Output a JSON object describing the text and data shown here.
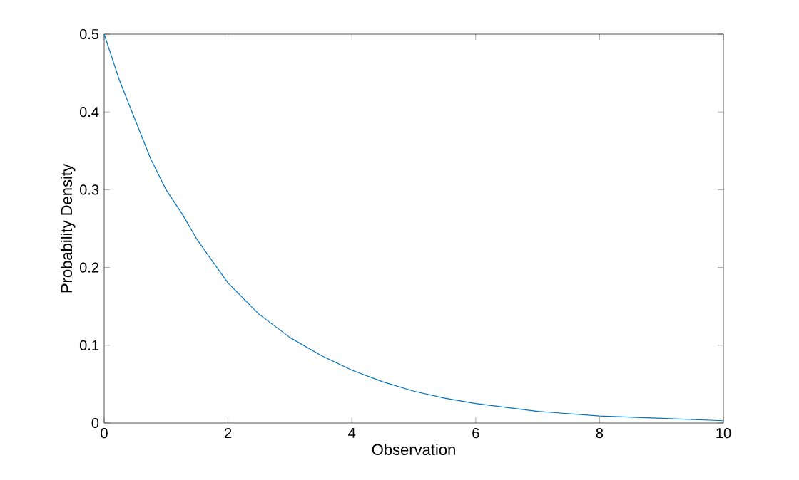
{
  "chart_data": {
    "type": "line",
    "xlabel": "Observation",
    "ylabel": "Probability Density",
    "x": [
      0,
      0.25,
      0.5,
      0.75,
      1,
      1.25,
      1.5,
      2,
      2.5,
      3,
      3.5,
      4,
      4.5,
      5,
      5.5,
      6,
      7,
      8,
      9,
      10
    ],
    "series": [
      {
        "color": "#0072bd",
        "values": [
          0.5,
          0.44,
          0.39,
          0.34,
          0.3,
          0.27,
          0.236,
          0.18,
          0.14,
          0.11,
          0.087,
          0.068,
          0.053,
          0.041,
          0.032,
          0.025,
          0.015,
          0.009,
          0.006,
          0.003
        ]
      }
    ],
    "xlim": [
      0,
      10
    ],
    "ylim": [
      0,
      0.5
    ],
    "xticks": [
      0,
      2,
      4,
      6,
      8,
      10
    ],
    "yticks": [
      0,
      0.1,
      0.2,
      0.3,
      0.4,
      0.5
    ],
    "grid": false
  }
}
